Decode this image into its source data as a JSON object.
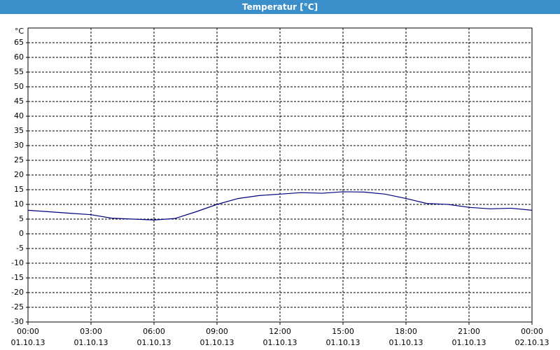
{
  "chart_data": {
    "type": "line",
    "title": "Temperatur [°C]",
    "y_unit": "°C",
    "x": [
      0,
      1,
      2,
      3,
      4,
      5,
      6,
      7,
      8,
      9,
      10,
      11,
      12,
      13,
      14,
      15,
      16,
      17,
      18,
      19,
      20,
      21,
      22,
      23,
      24
    ],
    "series": [
      {
        "name": "Temperatur",
        "color": "#000080",
        "values": [
          8,
          7.5,
          7,
          6.5,
          5.3,
          5,
          4.7,
          5.2,
          7.5,
          10,
          12,
          13,
          13.5,
          14,
          13.8,
          14.3,
          14.2,
          13.5,
          12,
          10.3,
          10,
          9,
          8.5,
          8.7,
          8
        ]
      }
    ],
    "xlim": [
      0,
      24
    ],
    "xticks": [
      {
        "value": 0,
        "label": "00:00"
      },
      {
        "value": 3,
        "label": "03:00"
      },
      {
        "value": 6,
        "label": "06:00"
      },
      {
        "value": 9,
        "label": "09:00"
      },
      {
        "value": 12,
        "label": "12:00"
      },
      {
        "value": 15,
        "label": "15:00"
      },
      {
        "value": 18,
        "label": "18:00"
      },
      {
        "value": 21,
        "label": "21:00"
      },
      {
        "value": 24,
        "label": "00:00"
      }
    ],
    "xtick_dates": [
      "01.10.13",
      "01.10.13",
      "01.10.13",
      "01.10.13",
      "01.10.13",
      "01.10.13",
      "01.10.13",
      "01.10.13",
      "02.10.13"
    ],
    "ylim": [
      -30,
      70
    ],
    "yticks": [
      -30,
      -25,
      -20,
      -15,
      -10,
      -5,
      0,
      5,
      10,
      15,
      20,
      25,
      30,
      35,
      40,
      45,
      50,
      55,
      60,
      65
    ],
    "grid": true
  }
}
